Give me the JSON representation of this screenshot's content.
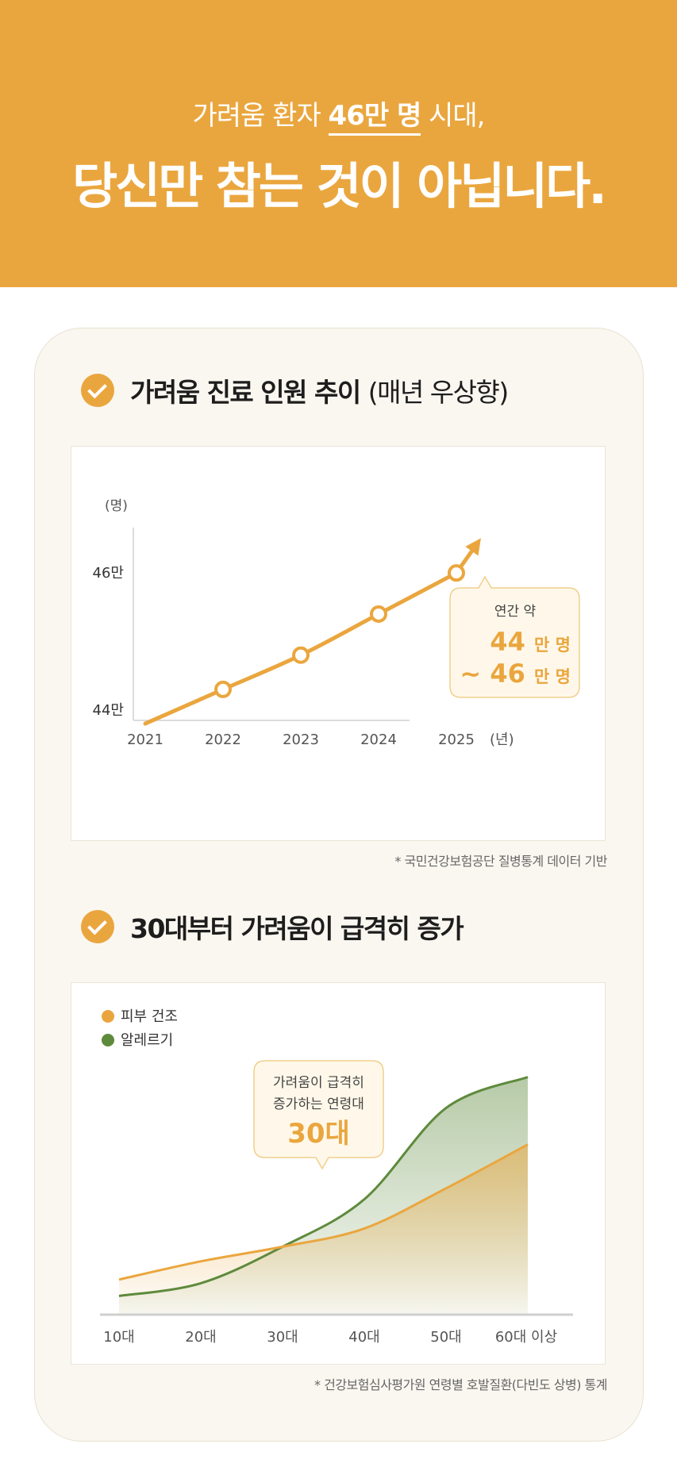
{
  "hero": {
    "subtitle_pre": "가려움 환자 ",
    "subtitle_highlight": "46만 명",
    "subtitle_post": " 시대,",
    "title": "당신만 참는 것이 아닙니다."
  },
  "section1": {
    "title_bold": "가려움 진료 인원 추이",
    "title_regular": "(매년 우상향)",
    "source": "* 국민건강보험공단 질병통계 데이터 기반"
  },
  "section2": {
    "title_bold": "30대부터 가려움이 급격히 증가",
    "source": "* 건강보험심사평가원 연령별 호발질환(다빈도 상병) 통계"
  },
  "colors": {
    "accent": "#eaa63e",
    "green": "#5e8a3c",
    "card_bg": "#faf7f0"
  },
  "chart_data": [
    {
      "type": "line",
      "x": [
        "2021",
        "2022",
        "2023",
        "2024",
        "2025"
      ],
      "series": [
        {
          "values": [
            43.8,
            44.3,
            44.8,
            45.4,
            46.0
          ],
          "markers_at": [
            "2022",
            "2023",
            "2024",
            "2025"
          ]
        }
      ],
      "ylabel": "(명)",
      "xlabel": "(년)",
      "y_ticks": [
        {
          "value": 46,
          "label": "46만"
        },
        {
          "value": 44,
          "label": "44만"
        }
      ],
      "ylim": [
        43.5,
        46.5
      ],
      "grid": false,
      "annotation": {
        "line1": "연간 약",
        "value1": "44",
        "unit1": "만 명",
        "value2": "~ 46",
        "unit2": "만 명"
      }
    },
    {
      "type": "area",
      "categories": [
        "10대",
        "20대",
        "30대",
        "40대",
        "50대",
        "60대 이상"
      ],
      "series": [
        {
          "name": "피부 건조",
          "color": "#eaa63e",
          "values": [
            14,
            24,
            32,
            42,
            64,
            88
          ]
        },
        {
          "name": "알레르기",
          "color": "#5e8a3c",
          "values": [
            5,
            12,
            32,
            58,
            108,
            125
          ]
        }
      ],
      "legend_position": "top-left",
      "grid": false,
      "annotation": {
        "line1": "가려움이 급격히",
        "line2": "증가하는 연령대",
        "value": "30대"
      }
    }
  ]
}
